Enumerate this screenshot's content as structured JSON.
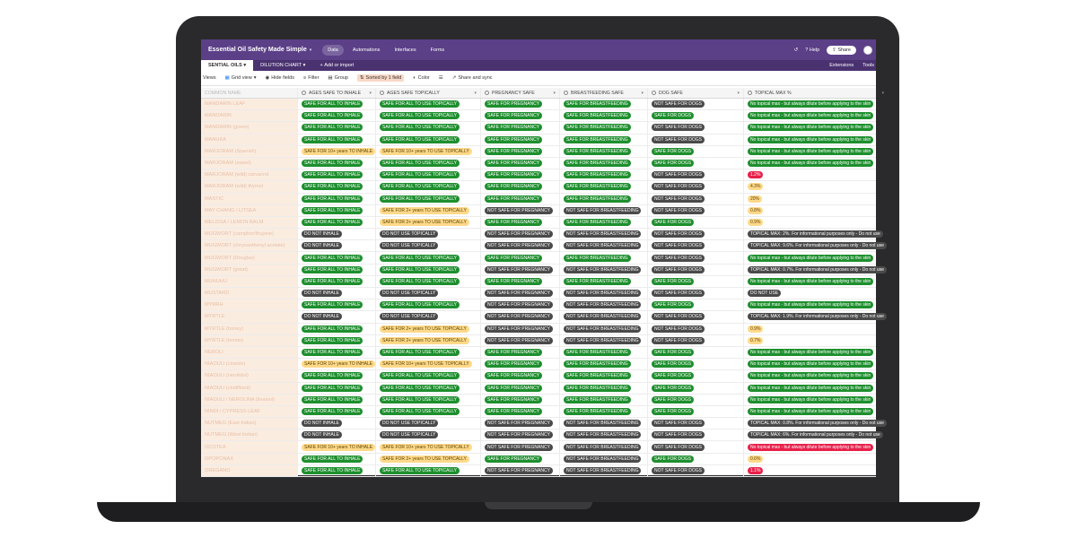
{
  "topbar": {
    "base_title": "Essential Oil Safety Made Simple",
    "nav": [
      "Data",
      "Automations",
      "Interfaces",
      "Forms"
    ],
    "help": "Help",
    "share": "Share"
  },
  "tabs": {
    "items": [
      "SENTIAL OILS",
      "DILUTION CHART"
    ],
    "add": "Add or import",
    "extensions": "Extensions",
    "tools": "Tools"
  },
  "toolbar": {
    "views": "Views",
    "grid_view": "Grid view",
    "hide_fields": "Hide fields",
    "filter": "Filter",
    "group": "Group",
    "sorted": "Sorted by 1 field",
    "color": "Color",
    "share_sync": "Share and sync"
  },
  "columns": [
    "COMMON NAME",
    "AGES SAFE TO INHALE",
    "AGES SAFE TOPICALLY",
    "PREGNANCY SAFE",
    "BREASTFEEDING SAFE",
    "DOG SAFE",
    "TOPICAL MAX %"
  ],
  "colors": {
    "green": "#1e8f2e",
    "dark": "#4a4a4a",
    "yellow": "#ffd98a",
    "red": "#e8204a",
    "purple": "#5b3f87"
  },
  "rows": [
    [
      "MANDARIN LEAF",
      "SAFE FOR ALL TO INHALE",
      "SAFE FOR ALL TO USE TOPICALLY",
      "SAFE FOR PREGNANCY",
      "SAFE FOR BREASTFEEDING",
      "NOT SAFE FOR DOGS",
      "No topical max - but always dilute before applying to the skin"
    ],
    [
      "MANDARIN",
      "SAFE FOR ALL TO INHALE",
      "SAFE FOR ALL TO USE TOPICALLY",
      "SAFE FOR PREGNANCY",
      "SAFE FOR BREASTFEEDING",
      "SAFE FOR DOGS",
      "No topical max - but always dilute before applying to the skin"
    ],
    [
      "MANDARIN (green)",
      "SAFE FOR ALL TO INHALE",
      "SAFE FOR ALL TO USE TOPICALLY",
      "SAFE FOR PREGNANCY",
      "SAFE FOR BREASTFEEDING",
      "NOT SAFE FOR DOGS",
      "No topical max - but always dilute before applying to the skin"
    ],
    [
      "MANUKA",
      "SAFE FOR ALL TO INHALE",
      "SAFE FOR ALL TO USE TOPICALLY",
      "SAFE FOR PREGNANCY",
      "SAFE FOR BREASTFEEDING",
      "NOT SAFE FOR DOGS",
      "No topical max - but always dilute before applying to the skin"
    ],
    [
      "MARJORAM (Spanish)",
      "SAFE FOR 10+ years TO INHALE",
      "SAFE FOR 10+ years TO USE TOPICALLY",
      "SAFE FOR PREGNANCY",
      "SAFE FOR BREASTFEEDING",
      "SAFE FOR DOGS",
      "No topical max - but always dilute before applying to the skin"
    ],
    [
      "MARJORAM (sweet)",
      "SAFE FOR ALL TO INHALE",
      "SAFE FOR ALL TO USE TOPICALLY",
      "SAFE FOR PREGNANCY",
      "SAFE FOR BREASTFEEDING",
      "SAFE FOR DOGS",
      "No topical max - but always dilute before applying to the skin"
    ],
    [
      "MARJORAM (wild) carvacrol",
      "SAFE FOR ALL TO INHALE",
      "SAFE FOR ALL TO USE TOPICALLY",
      "SAFE FOR PREGNANCY",
      "SAFE FOR BREASTFEEDING",
      "NOT SAFE FOR DOGS",
      "1.2%"
    ],
    [
      "MARJORAM (wild) thymol",
      "SAFE FOR ALL TO INHALE",
      "SAFE FOR ALL TO USE TOPICALLY",
      "SAFE FOR PREGNANCY",
      "SAFE FOR BREASTFEEDING",
      "NOT SAFE FOR DOGS",
      "4.3%"
    ],
    [
      "MASTIC",
      "SAFE FOR ALL TO INHALE",
      "SAFE FOR ALL TO USE TOPICALLY",
      "SAFE FOR PREGNANCY",
      "SAFE FOR BREASTFEEDING",
      "NOT SAFE FOR DOGS",
      "20%"
    ],
    [
      "MAY CHANG / LITSEA",
      "SAFE FOR ALL TO INHALE",
      "SAFE FOR 2+ years TO USE TOPICALLY",
      "NOT SAFE FOR PREGNANCY",
      "NOT SAFE FOR BREASTFEEDING",
      "NOT SAFE FOR DOGS",
      "0.8%"
    ],
    [
      "MELISSA / LEMON BALM",
      "SAFE FOR ALL TO INHALE",
      "SAFE FOR 2+ years TO USE TOPICALLY",
      "SAFE FOR PREGNANCY",
      "SAFE FOR BREASTFEEDING",
      "SAFE FOR DOGS",
      "0.9%"
    ],
    [
      "MUGWORT (camphor/thujone)",
      "DO NOT INHALE",
      "DO NOT USE TOPICALLY",
      "NOT SAFE FOR PREGNANCY",
      "NOT SAFE FOR BREASTFEEDING",
      "NOT SAFE FOR DOGS",
      "TOPICAL MAX: 2%. For informational purposes only - Do not use"
    ],
    [
      "MUGWORT (chrysanthenyl acetate)",
      "DO NOT INHALE",
      "DO NOT USE TOPICALLY",
      "NOT SAFE FOR PREGNANCY",
      "NOT SAFE FOR BREASTFEEDING",
      "NOT SAFE FOR DOGS",
      "TOPICAL MAX: 9.6%. For informational purposes only - Do not use"
    ],
    [
      "MUGWORT (Douglas)",
      "SAFE FOR ALL TO INHALE",
      "SAFE FOR ALL TO USE TOPICALLY",
      "SAFE FOR PREGNANCY",
      "SAFE FOR BREASTFEEDING",
      "NOT SAFE FOR DOGS",
      "No topical max - but always dilute before applying to the skin"
    ],
    [
      "MUGWORT (great)",
      "SAFE FOR ALL TO INHALE",
      "SAFE FOR ALL TO USE TOPICALLY",
      "NOT SAFE FOR PREGNANCY",
      "NOT SAFE FOR BREASTFEEDING",
      "NOT SAFE FOR DOGS",
      "TOPICAL MAX: 0.7%. For informational purposes only - Do not use"
    ],
    [
      "MUHUHU",
      "SAFE FOR ALL TO INHALE",
      "SAFE FOR ALL TO USE TOPICALLY",
      "SAFE FOR PREGNANCY",
      "SAFE FOR BREASTFEEDING",
      "SAFE FOR DOGS",
      "No topical max - but always dilute before applying to the skin"
    ],
    [
      "MUSTARD",
      "DO NOT INHALE",
      "DO NOT USE TOPICALLY",
      "NOT SAFE FOR PREGNANCY",
      "NOT SAFE FOR BREASTFEEDING",
      "NOT SAFE FOR DOGS",
      "DO NOT USE"
    ],
    [
      "MYRRH",
      "SAFE FOR ALL TO INHALE",
      "SAFE FOR ALL TO USE TOPICALLY",
      "NOT SAFE FOR PREGNANCY",
      "NOT SAFE FOR BREASTFEEDING",
      "SAFE FOR DOGS",
      "No topical max - but always dilute before applying to the skin"
    ],
    [
      "MYRTLE",
      "DO NOT INHALE",
      "DO NOT USE TOPICALLY",
      "NOT SAFE FOR PREGNANCY",
      "NOT SAFE FOR BREASTFEEDING",
      "NOT SAFE FOR DOGS",
      "TOPICAL MAX: 1.9%. For informational purposes only - Do not use"
    ],
    [
      "MYRTLE (honey)",
      "SAFE FOR ALL TO INHALE",
      "SAFE FOR 2+ years TO USE TOPICALLY",
      "NOT SAFE FOR PREGNANCY",
      "NOT SAFE FOR BREASTFEEDING",
      "NOT SAFE FOR DOGS",
      "0.9%"
    ],
    [
      "MYRTLE (lemon)",
      "SAFE FOR ALL TO INHALE",
      "SAFE FOR 2+ years TO USE TOPICALLY",
      "NOT SAFE FOR PREGNANCY",
      "NOT SAFE FOR BREASTFEEDING",
      "NOT SAFE FOR DOGS",
      "0.7%"
    ],
    [
      "NEROLI",
      "SAFE FOR ALL TO INHALE",
      "SAFE FOR ALL TO USE TOPICALLY",
      "SAFE FOR PREGNANCY",
      "SAFE FOR BREASTFEEDING",
      "SAFE FOR DOGS",
      "No topical max - but always dilute before applying to the skin"
    ],
    [
      "NIAOULI (cineole)",
      "SAFE FOR 10+ years TO INHALE",
      "SAFE FOR 10+ years TO USE TOPICALLY",
      "SAFE FOR PREGNANCY",
      "SAFE FOR BREASTFEEDING",
      "SAFE FOR DOGS",
      "No topical max - but always dilute before applying to the skin"
    ],
    [
      "NIAOULI (nerolidol)",
      "SAFE FOR ALL TO INHALE",
      "SAFE FOR ALL TO USE TOPICALLY",
      "SAFE FOR PREGNANCY",
      "SAFE FOR BREASTFEEDING",
      "SAFE FOR DOGS",
      "No topical max - but always dilute before applying to the skin"
    ],
    [
      "NIAOULI (viridiflorol)",
      "SAFE FOR ALL TO INHALE",
      "SAFE FOR ALL TO USE TOPICALLY",
      "SAFE FOR PREGNANCY",
      "SAFE FOR BREASTFEEDING",
      "SAFE FOR DOGS",
      "No topical max - but always dilute before applying to the skin"
    ],
    [
      "NIAOULI / NEROLINA (linalool)",
      "SAFE FOR ALL TO INHALE",
      "SAFE FOR ALL TO USE TOPICALLY",
      "SAFE FOR PREGNANCY",
      "SAFE FOR BREASTFEEDING",
      "SAFE FOR DOGS",
      "No topical max - but always dilute before applying to the skin"
    ],
    [
      "NINDI / CYPRESS LEAF",
      "SAFE FOR ALL TO INHALE",
      "SAFE FOR ALL TO USE TOPICALLY",
      "SAFE FOR PREGNANCY",
      "SAFE FOR BREASTFEEDING",
      "SAFE FOR DOGS",
      "No topical max - but always dilute before applying to the skin"
    ],
    [
      "NUTMEG (East Indian)",
      "DO NOT INHALE",
      "DO NOT USE TOPICALLY",
      "NOT SAFE FOR PREGNANCY",
      "NOT SAFE FOR BREASTFEEDING",
      "NOT SAFE FOR DOGS",
      "TOPICAL MAX: 0.8%. For informational purposes only - Do not use"
    ],
    [
      "NUTMEG (West Indian)",
      "DO NOT INHALE",
      "DO NOT USE TOPICALLY",
      "NOT SAFE FOR PREGNANCY",
      "NOT SAFE FOR BREASTFEEDING",
      "NOT SAFE FOR DOGS",
      "TOPICAL MAX: 6%. For informational purposes only - Do not use"
    ],
    [
      "OCOTEA",
      "SAFE FOR 10+ years TO INHALE",
      "SAFE FOR 10+ years TO USE TOPICALLY",
      "NOT SAFE FOR PREGNANCY",
      "NOT SAFE FOR BREASTFEEDING",
      "NOT SAFE FOR DOGS",
      "No topical max - but always dilute before applying to the skin"
    ],
    [
      "OPOPONAX",
      "SAFE FOR ALL TO INHALE",
      "SAFE FOR 2+ years TO USE TOPICALLY",
      "SAFE FOR PREGNANCY",
      "NOT SAFE FOR BREASTFEEDING",
      "SAFE FOR DOGS",
      "0.6%"
    ],
    [
      "OREGANO",
      "SAFE FOR ALL TO INHALE",
      "SAFE FOR ALL TO USE TOPICALLY",
      "NOT SAFE FOR PREGNANCY",
      "NOT SAFE FOR BREASTFEEDING",
      "NOT SAFE FOR DOGS",
      "1.1%"
    ]
  ]
}
